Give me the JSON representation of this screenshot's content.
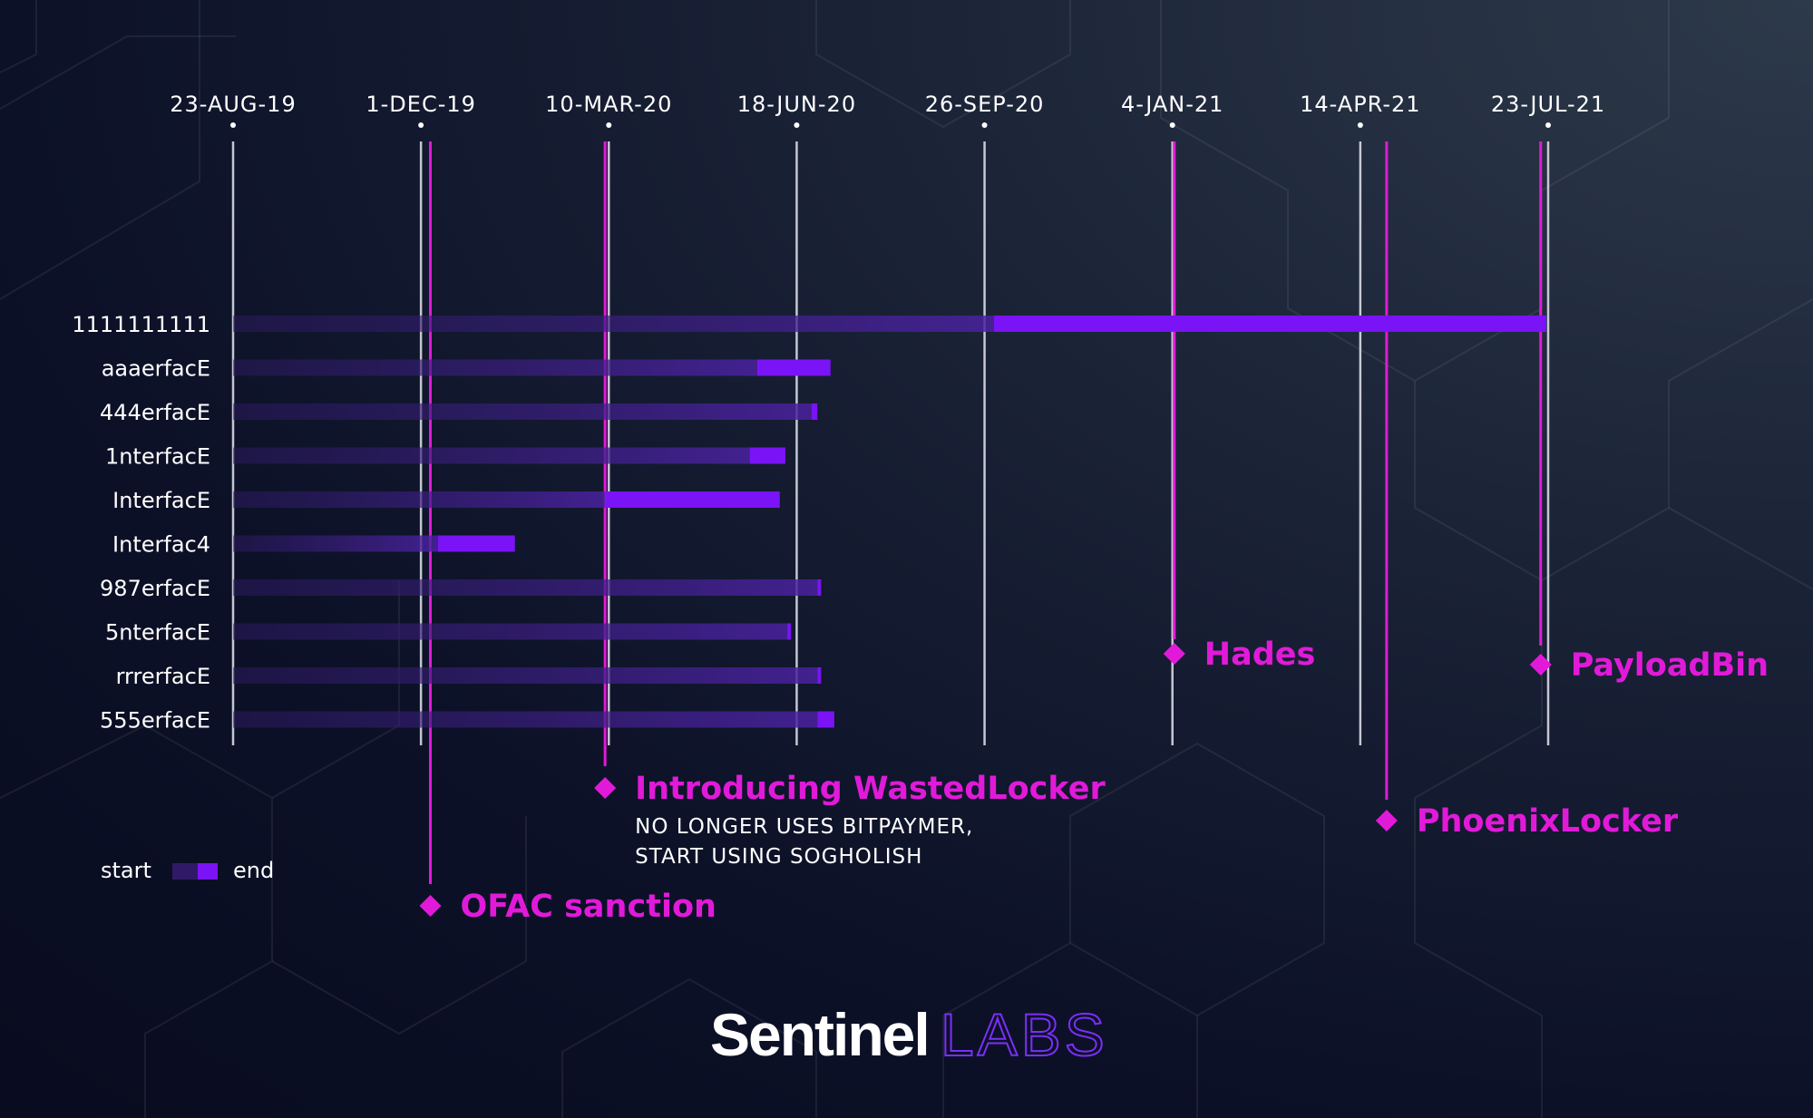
{
  "chart_data": {
    "type": "timeline",
    "x_ticks": [
      "23-AUG-19",
      "1-DEC-19",
      "10-MAR-20",
      "18-JUN-20",
      "26-SEP-20",
      "4-JAN-21",
      "14-APR-21",
      "23-JUL-21"
    ],
    "x_tick_dates": [
      "2019-08-23",
      "2019-12-01",
      "2020-03-10",
      "2020-06-18",
      "2020-09-26",
      "2021-01-04",
      "2021-04-14",
      "2021-07-23"
    ],
    "rows": [
      {
        "label": "1111111111",
        "start": "2019-08-23",
        "end_start": "2020-10-01",
        "end": "2021-07-22"
      },
      {
        "label": "aaaerfacE",
        "start": "2019-08-23",
        "end_start": "2020-05-28",
        "end": "2020-07-06"
      },
      {
        "label": "444erfacE",
        "start": "2019-08-23",
        "end_start": "2020-06-26",
        "end": "2020-06-29"
      },
      {
        "label": "1nterfacE",
        "start": "2019-08-23",
        "end_start": "2020-05-24",
        "end": "2020-06-12"
      },
      {
        "label": "InterfacE",
        "start": "2019-08-23",
        "end_start": "2020-03-08",
        "end": "2020-06-09"
      },
      {
        "label": "Interfac4",
        "start": "2019-08-23",
        "end_start": "2019-12-10",
        "end": "2020-01-20"
      },
      {
        "label": "987erfacE",
        "start": "2019-08-23",
        "end_start": "2020-06-29",
        "end": "2020-07-01"
      },
      {
        "label": "5nterfacE",
        "start": "2019-08-23",
        "end_start": "2020-06-13",
        "end": "2020-06-15"
      },
      {
        "label": "rrrerfacE",
        "start": "2019-08-23",
        "end_start": "2020-06-29",
        "end": "2020-07-01"
      },
      {
        "label": "555erfacE",
        "start": "2019-08-23",
        "end_start": "2020-06-29",
        "end": "2020-07-08"
      }
    ],
    "events": [
      {
        "title": "OFAC sanction",
        "date": "2019-12-06",
        "notes": [],
        "label_position": "bottom"
      },
      {
        "title": "Introducing WastedLocker",
        "date": "2020-03-08",
        "notes": [
          "NO LONGER USES BITPAYMER,",
          "START USING SOGHOLISH"
        ],
        "label_position": "bottom"
      },
      {
        "title": "Hades",
        "date": "2021-01-05",
        "notes": [],
        "label_position": "middle"
      },
      {
        "title": "PhoenixLocker",
        "date": "2021-04-28",
        "notes": [],
        "label_position": "bottom"
      },
      {
        "title": "PayloadBin",
        "date": "2021-07-19",
        "notes": [],
        "label_position": "middle"
      }
    ],
    "legend": {
      "start_label": "start",
      "end_label": "end",
      "placement": "bottom-left"
    }
  },
  "branding": {
    "logo_primary": "Sentinel",
    "logo_secondary": "LABS"
  },
  "colors": {
    "accent_purple": "#7a13f5",
    "faded_purple": "#3a1d78",
    "event_magenta": "#e11ad9",
    "grid_line": "#d8dae3"
  }
}
